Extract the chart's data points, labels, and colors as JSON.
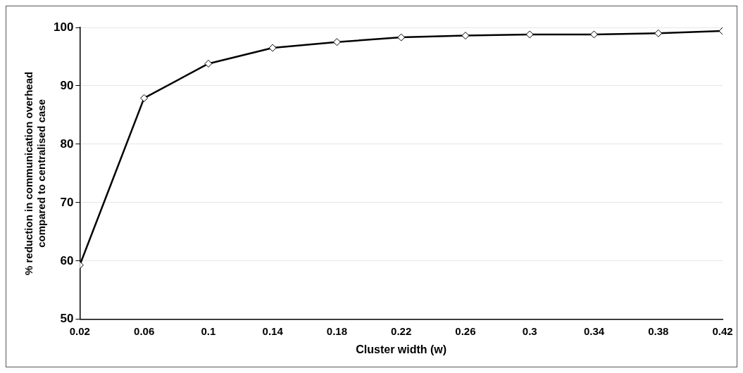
{
  "chart_data": {
    "type": "line",
    "xlabel": "Cluster width (w)",
    "ylabel": "% reduction in communication overhead compared to centralised case",
    "x": [
      0.02,
      0.06,
      0.1,
      0.14,
      0.18,
      0.22,
      0.26,
      0.3,
      0.34,
      0.38,
      0.42
    ],
    "series": [
      {
        "color": "#000000",
        "values": [
          59.3,
          87.9,
          93.8,
          96.5,
          97.5,
          98.3,
          98.6,
          98.8,
          98.8,
          99.0,
          99.4
        ]
      }
    ],
    "xlim": [
      0.02,
      0.42
    ],
    "xticks": [
      0.02,
      0.06,
      0.1,
      0.14,
      0.18,
      0.22,
      0.26,
      0.3,
      0.34,
      0.38,
      0.42
    ],
    "ylim": [
      50,
      100
    ],
    "yticks": [
      50,
      60,
      70,
      80,
      90,
      100
    ],
    "grid": "y",
    "marker": "diamond",
    "line_style": "solid",
    "legend": false
  }
}
